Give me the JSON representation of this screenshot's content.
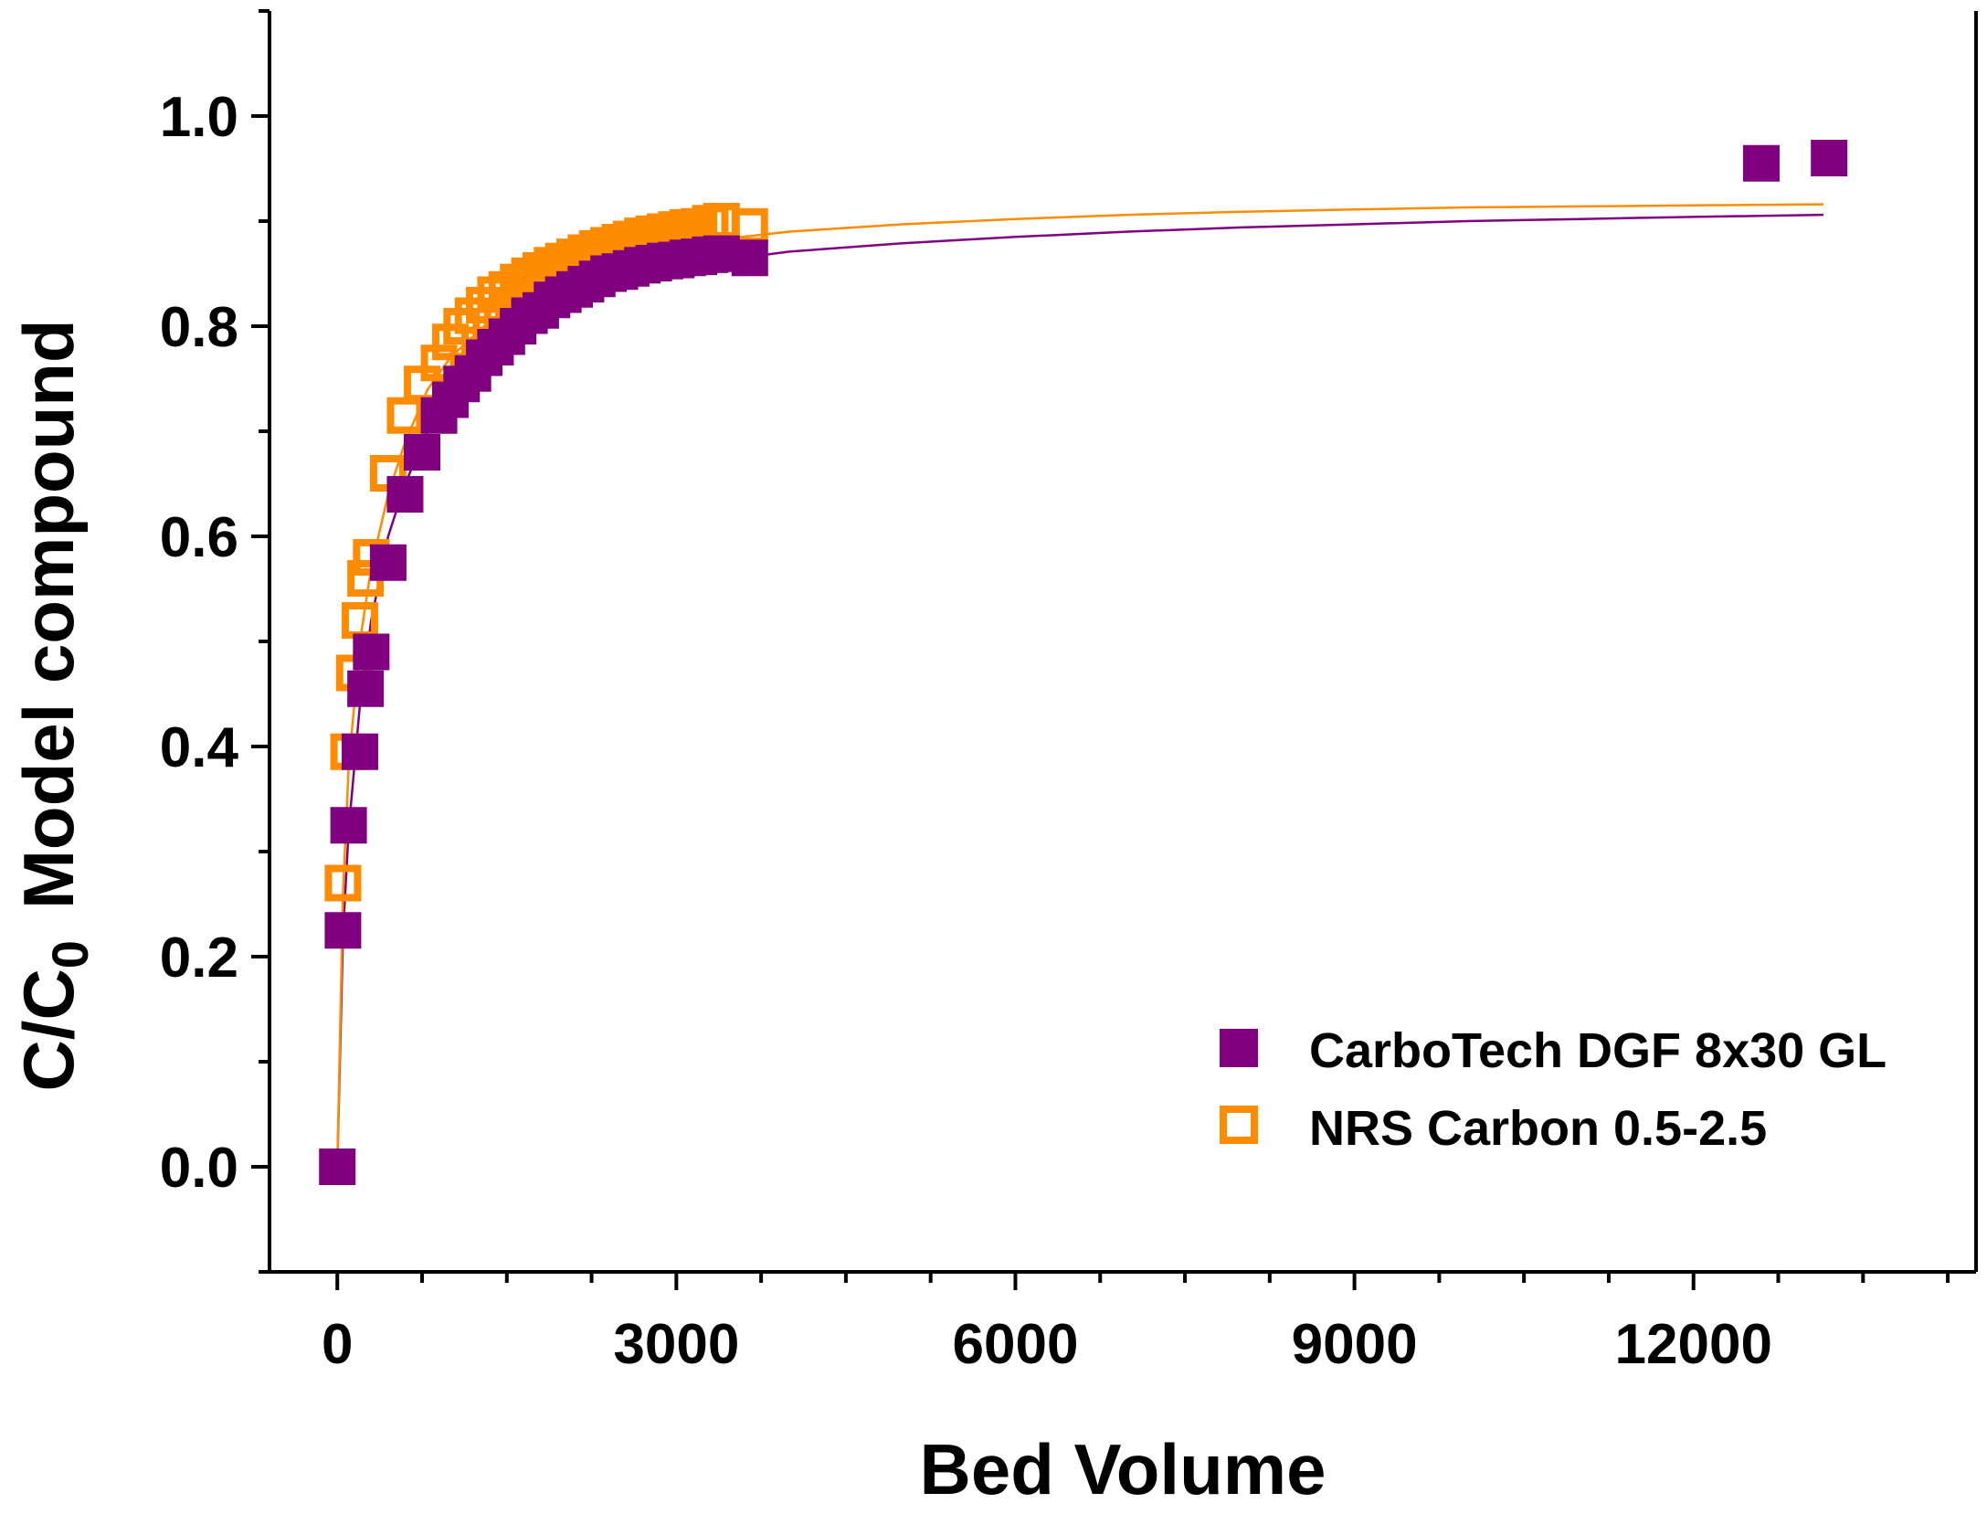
{
  "chart_data": {
    "type": "scatter",
    "title": "",
    "xlabel": "Bed Volume",
    "ylabel": {
      "main": "C/C",
      "subscript": "0",
      "suffix": "Model compound"
    },
    "xlim": [
      -600,
      14500
    ],
    "ylim": [
      -0.1,
      1.1
    ],
    "x_ticks": [
      0,
      3000,
      6000,
      9000,
      12000
    ],
    "x_tick_labels": [
      "0",
      "3000",
      "6000",
      "9000",
      "12000"
    ],
    "y_ticks": [
      0.0,
      0.2,
      0.4,
      0.6,
      0.8,
      1.0
    ],
    "y_tick_labels": [
      "0.0",
      "0.2",
      "0.4",
      "0.6",
      "0.8",
      "1.0"
    ],
    "grid": false,
    "legend_position": "bottom-right",
    "series": [
      {
        "name": "CarboTech DGF 8x30 GL",
        "color": "#800080",
        "marker": "filled-square",
        "x": [
          0,
          50,
          100,
          200,
          250,
          300,
          450,
          600,
          750,
          900,
          1000,
          1100,
          1200,
          1300,
          1400,
          1500,
          1600,
          1700,
          1800,
          1900,
          2000,
          2100,
          2200,
          2300,
          2400,
          2500,
          2600,
          2700,
          2800,
          2900,
          3000,
          3100,
          3200,
          3300,
          3400,
          3650,
          12600,
          13200
        ],
        "y": [
          0.0,
          0.225,
          0.325,
          0.395,
          0.455,
          0.49,
          0.575,
          0.64,
          0.68,
          0.715,
          0.73,
          0.745,
          0.755,
          0.77,
          0.78,
          0.79,
          0.8,
          0.81,
          0.815,
          0.825,
          0.83,
          0.835,
          0.84,
          0.845,
          0.85,
          0.852,
          0.855,
          0.858,
          0.86,
          0.862,
          0.863,
          0.865,
          0.866,
          0.868,
          0.869,
          0.865,
          0.955,
          0.96
        ],
        "fit_curve": {
          "color": "#800080",
          "x": [
            0,
            50,
            100,
            200,
            300,
            450,
            600,
            800,
            1000,
            1300,
            1600,
            2000,
            2500,
            3000,
            3500,
            4000,
            5000,
            6000,
            7000,
            8000,
            9000,
            10000,
            11000,
            12000,
            13150
          ],
          "y": [
            0.0,
            0.22,
            0.32,
            0.44,
            0.52,
            0.6,
            0.65,
            0.7,
            0.73,
            0.765,
            0.79,
            0.815,
            0.838,
            0.853,
            0.864,
            0.871,
            0.879,
            0.885,
            0.89,
            0.894,
            0.897,
            0.9,
            0.902,
            0.904,
            0.906
          ]
        }
      },
      {
        "name": "NRS Carbon 0.5-2.5",
        "color": "#FF8C00",
        "marker": "open-square",
        "x": [
          50,
          100,
          150,
          200,
          250,
          300,
          450,
          600,
          750,
          900,
          1000,
          1100,
          1200,
          1300,
          1400,
          1500,
          1600,
          1700,
          1800,
          1900,
          2000,
          2100,
          2200,
          2300,
          2400,
          2500,
          2600,
          2700,
          2800,
          2900,
          3000,
          3100,
          3200,
          3300,
          3400,
          3650
        ],
        "y": [
          0.27,
          0.395,
          0.47,
          0.52,
          0.56,
          0.58,
          0.66,
          0.715,
          0.745,
          0.765,
          0.785,
          0.8,
          0.81,
          0.82,
          0.83,
          0.835,
          0.842,
          0.848,
          0.853,
          0.858,
          0.862,
          0.866,
          0.87,
          0.874,
          0.877,
          0.88,
          0.883,
          0.886,
          0.888,
          0.89,
          0.892,
          0.894,
          0.895,
          0.898,
          0.9,
          0.895
        ],
        "fit_curve": {
          "color": "#FF8C00",
          "x": [
            0,
            50,
            100,
            200,
            300,
            450,
            600,
            800,
            1000,
            1300,
            1600,
            2000,
            2500,
            3000,
            3500,
            4000,
            5000,
            6000,
            7000,
            8000,
            9000,
            10000,
            11000,
            12000,
            13150
          ],
          "y": [
            0.0,
            0.26,
            0.38,
            0.5,
            0.57,
            0.64,
            0.69,
            0.74,
            0.77,
            0.8,
            0.823,
            0.845,
            0.864,
            0.876,
            0.884,
            0.89,
            0.897,
            0.902,
            0.906,
            0.909,
            0.911,
            0.913,
            0.914,
            0.915,
            0.916
          ]
        }
      }
    ]
  }
}
